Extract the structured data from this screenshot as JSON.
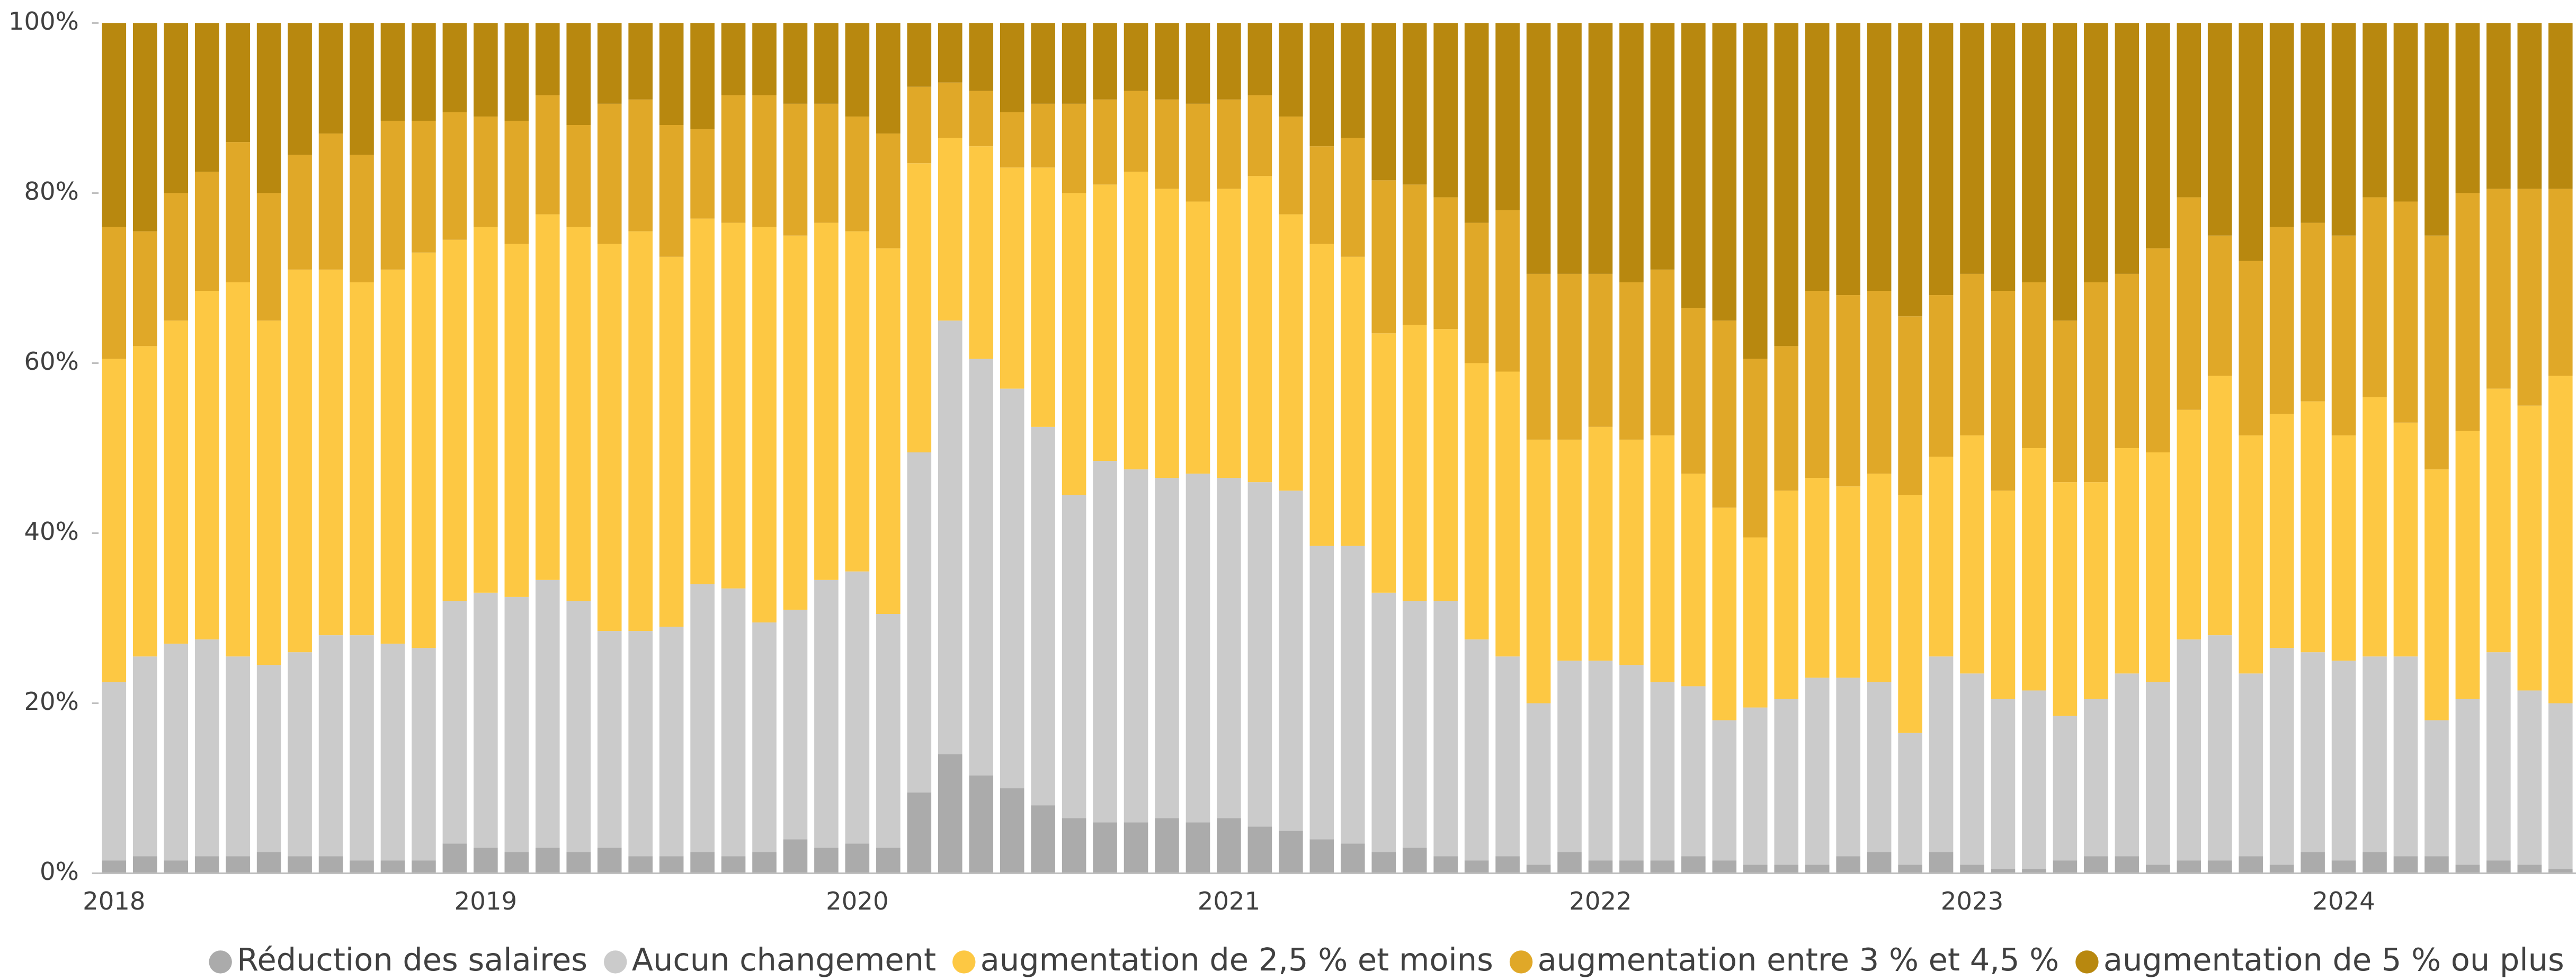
{
  "chart_data": {
    "type": "stacked_bar_100",
    "categories": [
      "2018",
      null,
      null,
      null,
      null,
      null,
      null,
      null,
      null,
      null,
      null,
      null,
      "2019",
      null,
      null,
      null,
      null,
      null,
      null,
      null,
      null,
      null,
      null,
      null,
      "2020",
      null,
      null,
      null,
      null,
      null,
      null,
      null,
      null,
      null,
      null,
      null,
      "2021",
      null,
      null,
      null,
      null,
      null,
      null,
      null,
      null,
      null,
      null,
      null,
      "2022",
      null,
      null,
      null,
      null,
      null,
      null,
      null,
      null,
      null,
      null,
      null,
      "2023",
      null,
      null,
      null,
      null,
      null,
      null,
      null,
      null,
      null,
      null,
      null,
      "2024",
      null,
      null,
      null,
      null,
      null,
      null,
      null
    ],
    "series": [
      {
        "name": "Réduction des salaires",
        "color": "#ababab",
        "values": [
          1.5,
          2,
          1.5,
          2,
          2,
          2.5,
          2,
          2,
          1.5,
          1.5,
          1.5,
          3.5,
          3,
          2.5,
          3,
          2.5,
          3,
          2,
          2,
          2.5,
          2,
          2.5,
          4,
          3,
          3.5,
          3,
          9.5,
          14,
          11.5,
          10,
          8,
          6.5,
          6,
          6,
          6.5,
          6,
          6.5,
          5.5,
          5,
          4,
          3.5,
          2.5,
          3,
          2,
          1.5,
          2,
          1,
          2.5,
          1.5,
          1.5,
          1.5,
          2,
          1.5,
          1,
          1,
          1,
          2,
          2.5,
          1,
          2.5,
          1,
          0.5,
          0.5,
          1.5,
          2,
          2,
          1,
          1.5,
          1.5,
          2,
          1,
          2.5,
          1.5,
          2.5,
          2,
          2,
          1,
          1.5,
          1,
          0.5
        ]
      },
      {
        "name": "Aucun changement",
        "color": "#cbcbcb",
        "values": [
          21,
          23.5,
          25.5,
          25.5,
          23.5,
          22,
          24,
          26,
          26.5,
          25.5,
          25,
          28.5,
          30,
          30,
          31.5,
          29.5,
          25.5,
          26.5,
          27,
          31.5,
          31.5,
          27,
          27,
          31.5,
          32,
          27.5,
          40,
          51,
          49,
          47,
          44.5,
          38,
          42.5,
          41.5,
          40,
          41,
          40,
          40.5,
          40,
          34.5,
          35,
          30.5,
          29,
          30,
          26,
          23.5,
          19,
          22.5,
          23.5,
          23,
          21,
          20,
          16.5,
          18.5,
          19.5,
          22,
          21,
          20,
          15.5,
          23,
          22.5,
          20,
          21,
          17,
          18.5,
          21.5,
          21.5,
          26,
          26.5,
          21.5,
          25.5,
          23.5,
          23.5,
          23,
          23.5,
          16,
          19.5,
          24.5,
          20.5,
          19.5
        ]
      },
      {
        "name": "augmentation de 2,5 % et moins",
        "color": "#fdc843",
        "values": [
          38,
          36.5,
          38,
          41,
          44,
          40.5,
          45,
          43,
          41.5,
          44,
          46.5,
          42.5,
          43,
          41.5,
          43,
          44,
          45.5,
          47,
          43.5,
          43,
          43,
          46.5,
          44,
          42,
          40,
          43,
          34,
          21.5,
          25,
          26,
          30.5,
          35.5,
          32.5,
          35,
          34,
          32,
          34,
          36,
          32.5,
          35.5,
          34,
          30.5,
          32.5,
          32,
          32.5,
          33.5,
          31,
          26,
          27.5,
          26.5,
          29,
          25,
          25,
          20,
          24.5,
          23.5,
          22.5,
          24.5,
          28,
          23.5,
          28,
          24.5,
          28.5,
          27.5,
          25.5,
          26.5,
          27,
          27,
          30.5,
          28,
          27.5,
          29.5,
          26.5,
          30.5,
          27.5,
          29.5,
          31.5,
          31,
          33.5,
          38.5
        ]
      },
      {
        "name": "augmentation entre 3 % et 4,5 %",
        "color": "#e0a828",
        "values": [
          15.5,
          13.5,
          15,
          14,
          16.5,
          15,
          13.5,
          16,
          15,
          17.5,
          15.5,
          15,
          13,
          14.5,
          14,
          12,
          16.5,
          15.5,
          15.5,
          10.5,
          15,
          15.5,
          15.5,
          14,
          13.5,
          13.5,
          9,
          6.5,
          6.5,
          6.5,
          7.5,
          10.5,
          10,
          9.5,
          10.5,
          11.5,
          10.5,
          9.5,
          11.5,
          11.5,
          14,
          18,
          16.5,
          15.5,
          16.5,
          19,
          19.5,
          19.5,
          18,
          18.5,
          19.5,
          19.5,
          22,
          21,
          17,
          22,
          22.5,
          21.5,
          21,
          19,
          19,
          23.5,
          19.5,
          19,
          23.5,
          20.5,
          24,
          25,
          16.5,
          20.5,
          22,
          21,
          23.5,
          23.5,
          26,
          27.5,
          28,
          23.5,
          25.5,
          22
        ]
      },
      {
        "name": "augmentation de 5 % ou plus",
        "color": "#b8880f",
        "values": [
          24,
          24.5,
          20,
          17.5,
          14,
          20,
          15.5,
          13,
          15.5,
          11.5,
          11.5,
          10.5,
          11,
          11.5,
          8.5,
          12,
          9.5,
          9,
          12,
          12.5,
          8.5,
          8.5,
          9.5,
          9.5,
          11,
          13,
          7.5,
          7,
          8,
          10.5,
          9.5,
          9.5,
          9,
          8,
          9,
          9.5,
          9,
          8.5,
          11,
          14.5,
          13.5,
          18.5,
          19,
          20.5,
          23.5,
          22,
          29.5,
          29.5,
          29.5,
          30.5,
          29,
          33.5,
          35,
          39.5,
          38,
          31.5,
          32,
          31.5,
          34.5,
          32,
          29.5,
          31.5,
          30.5,
          35,
          30.5,
          29.5,
          26.5,
          20.5,
          25,
          28,
          24,
          23.5,
          25,
          20.5,
          21,
          25,
          20,
          19.5,
          19.5,
          19.5
        ]
      }
    ],
    "ylim": [
      0,
      100
    ],
    "yticks": [
      {
        "value": 0,
        "label": "0%"
      },
      {
        "value": 20,
        "label": "20%"
      },
      {
        "value": 40,
        "label": "40%"
      },
      {
        "value": 60,
        "label": "60%"
      },
      {
        "value": 80,
        "label": "80%"
      },
      {
        "value": 100,
        "label": "100%"
      }
    ],
    "legend": "bottom"
  }
}
